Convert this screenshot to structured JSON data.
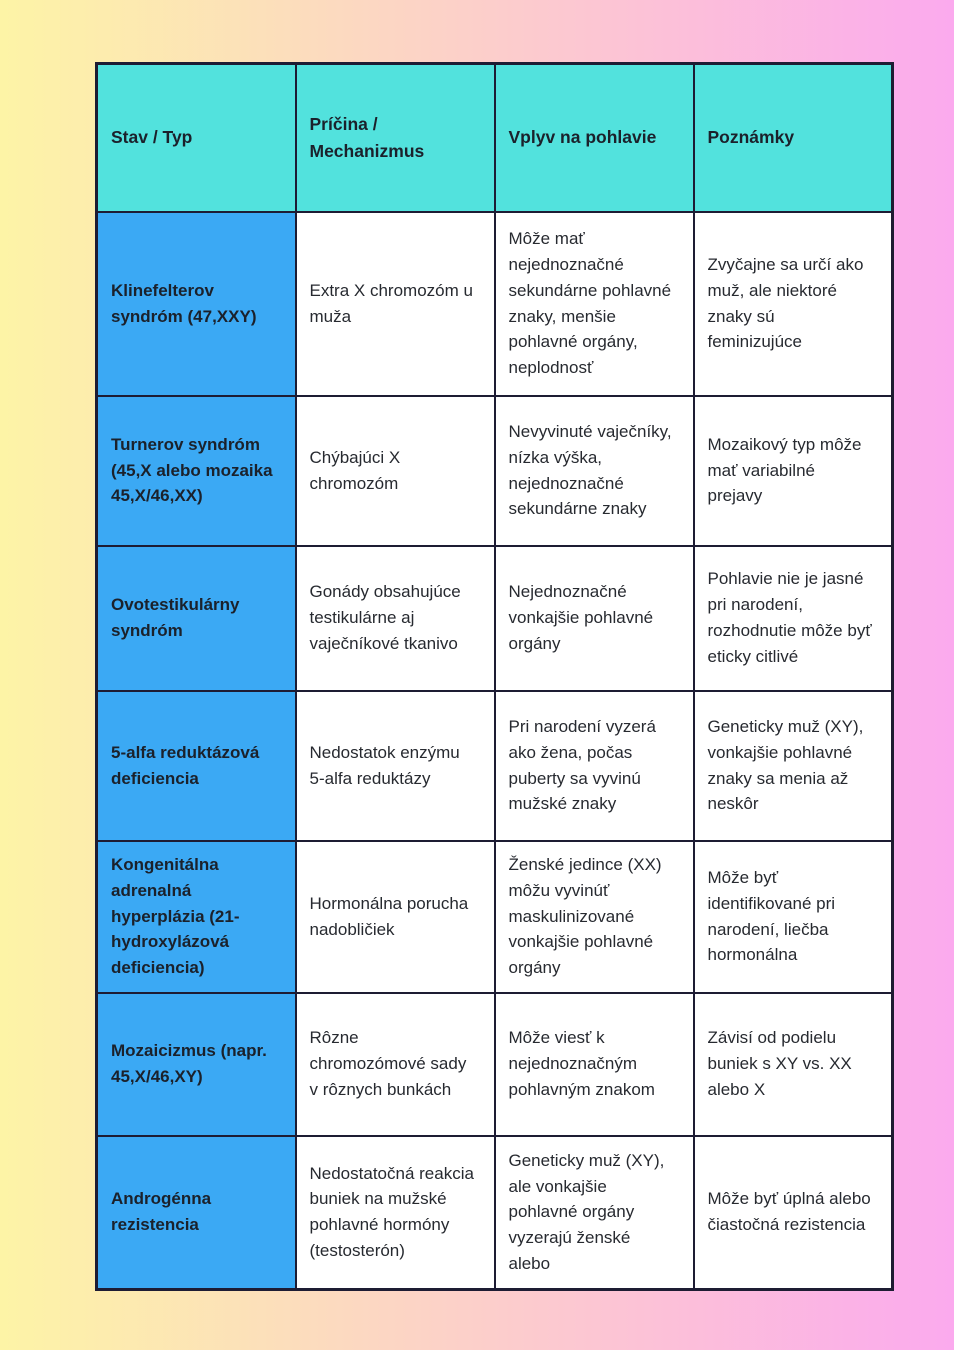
{
  "colors": {
    "bg_left": "#fdf4a6",
    "bg_right": "#fbaaee",
    "header_bg": "#52e2dd",
    "rowlabel_bg": "#3ba9f4",
    "cell_bg": "#ffffff",
    "border": "#1d1c33",
    "heading_text": "#1b212b",
    "body_text": "#272a30"
  },
  "table": {
    "columns": [
      "Stav / Typ",
      "Príčina / Mechanizmus",
      "Vplyv na pohlavie",
      "Poznámky"
    ],
    "rows": [
      {
        "condition": "Klinefelterov syndróm (47,XXY)",
        "cause": "Extra X chromozóm u muža",
        "effect": "Môže mať nejednoznačné sekundárne pohlavné znaky, menšie pohlavné orgány, neplodnosť",
        "notes": "Zvyčajne sa určí ako muž, ale niektoré znaky sú feminizujúce"
      },
      {
        "condition": "Turnerov syndróm (45,X alebo mozaika 45,X/46,XX)",
        "cause": "Chýbajúci X chromozóm",
        "effect": "Nevyvinuté vaječníky, nízka výška, nejednoznačné sekundárne znaky",
        "notes": "Mozaikový typ môže mať variabilné prejavy"
      },
      {
        "condition": "Ovotestikulárny syndróm",
        "cause": "Gonády obsahujúce testikulárne aj vaječníkové tkanivo",
        "effect": "Nejednoznačné vonkajšie pohlavné orgány",
        "notes": "Pohlavie nie je jasné pri narodení, rozhodnutie môže byť eticky citlivé"
      },
      {
        "condition": "5-alfa reduktázová deficiencia",
        "cause": "Nedostatok enzýmu 5-alfa reduktázy",
        "effect": "Pri narodení vyzerá ako žena, počas puberty sa vyvinú mužské znaky",
        "notes": "Geneticky muž (XY), vonkajšie pohlavné znaky sa menia až neskôr"
      },
      {
        "condition": "Kongenitálna adrenalná hyperplázia (21-hydroxylázová deficiencia)",
        "cause": "Hormonálna porucha nadobličiek",
        "effect": "Ženské jedince (XX) môžu vyvinúť maskulinizované vonkajšie pohlavné orgány",
        "notes": "Môže byť identifikované pri narodení, liečba hormonálna"
      },
      {
        "condition": "Mozaicizmus (napr. 45,X/46,XY)",
        "cause": "Rôzne chromozómové sady v rôznych bunkách",
        "effect": "Môže viesť k nejednoznačným pohlavným znakom",
        "notes": "Závisí od podielu buniek s XY vs. XX alebo X"
      },
      {
        "condition": "Androgénna rezistencia",
        "cause": "Nedostatočná reakcia buniek na mužské pohlavné hormóny (testosterón)",
        "effect": "Geneticky muž (XY), ale vonkajšie pohlavné orgány vyzerajú ženské alebo",
        "notes": "Môže byť úplná alebo čiastočná rezistencia"
      }
    ]
  }
}
